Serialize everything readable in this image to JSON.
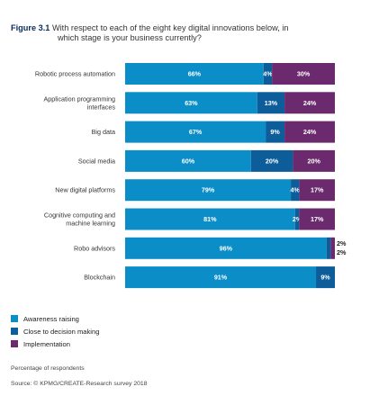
{
  "header": {
    "figure_label": "Figure 3.1",
    "question_line1": "With respect to each of the eight key digital innovations below, in",
    "question_line2": "which stage is your business currently?"
  },
  "colors": {
    "awareness": "#0b8ec8",
    "decision": "#0d5d9a",
    "implementation": "#6b2a6e"
  },
  "chart_data": {
    "type": "bar",
    "orientation": "horizontal",
    "stacked": true,
    "categories": [
      [
        "Robotic process automation"
      ],
      [
        "Application programming",
        "interfaces"
      ],
      [
        "Big data"
      ],
      [
        "Social media"
      ],
      [
        "New digital platforms"
      ],
      [
        "Cognitive computing and",
        "machine learning"
      ],
      [
        "Robo advisors"
      ],
      [
        "Blockchain"
      ]
    ],
    "series": [
      {
        "name": "Awareness raising",
        "values": [
          66,
          63,
          67,
          60,
          79,
          81,
          96,
          91
        ]
      },
      {
        "name": "Close to decision making",
        "values": [
          4,
          13,
          9,
          20,
          4,
          2,
          2,
          9
        ]
      },
      {
        "name": "Implementation",
        "values": [
          30,
          24,
          24,
          20,
          17,
          17,
          2,
          0
        ]
      }
    ],
    "labels": [
      [
        "66%",
        "4%",
        "30%"
      ],
      [
        "63%",
        "13%",
        "24%"
      ],
      [
        "67%",
        "9%",
        "24%"
      ],
      [
        "60%",
        "20%",
        "20%"
      ],
      [
        "79%",
        "4%",
        "17%"
      ],
      [
        "81%",
        "2%",
        "17%"
      ],
      [
        "96%",
        "2%",
        "2%"
      ],
      [
        "91%",
        "9%",
        ""
      ]
    ],
    "xlim": [
      0,
      100
    ]
  },
  "footer": {
    "note": "Percentage of respondents",
    "source": "Source: © KPMG/CREATE-Research survey 2018"
  }
}
